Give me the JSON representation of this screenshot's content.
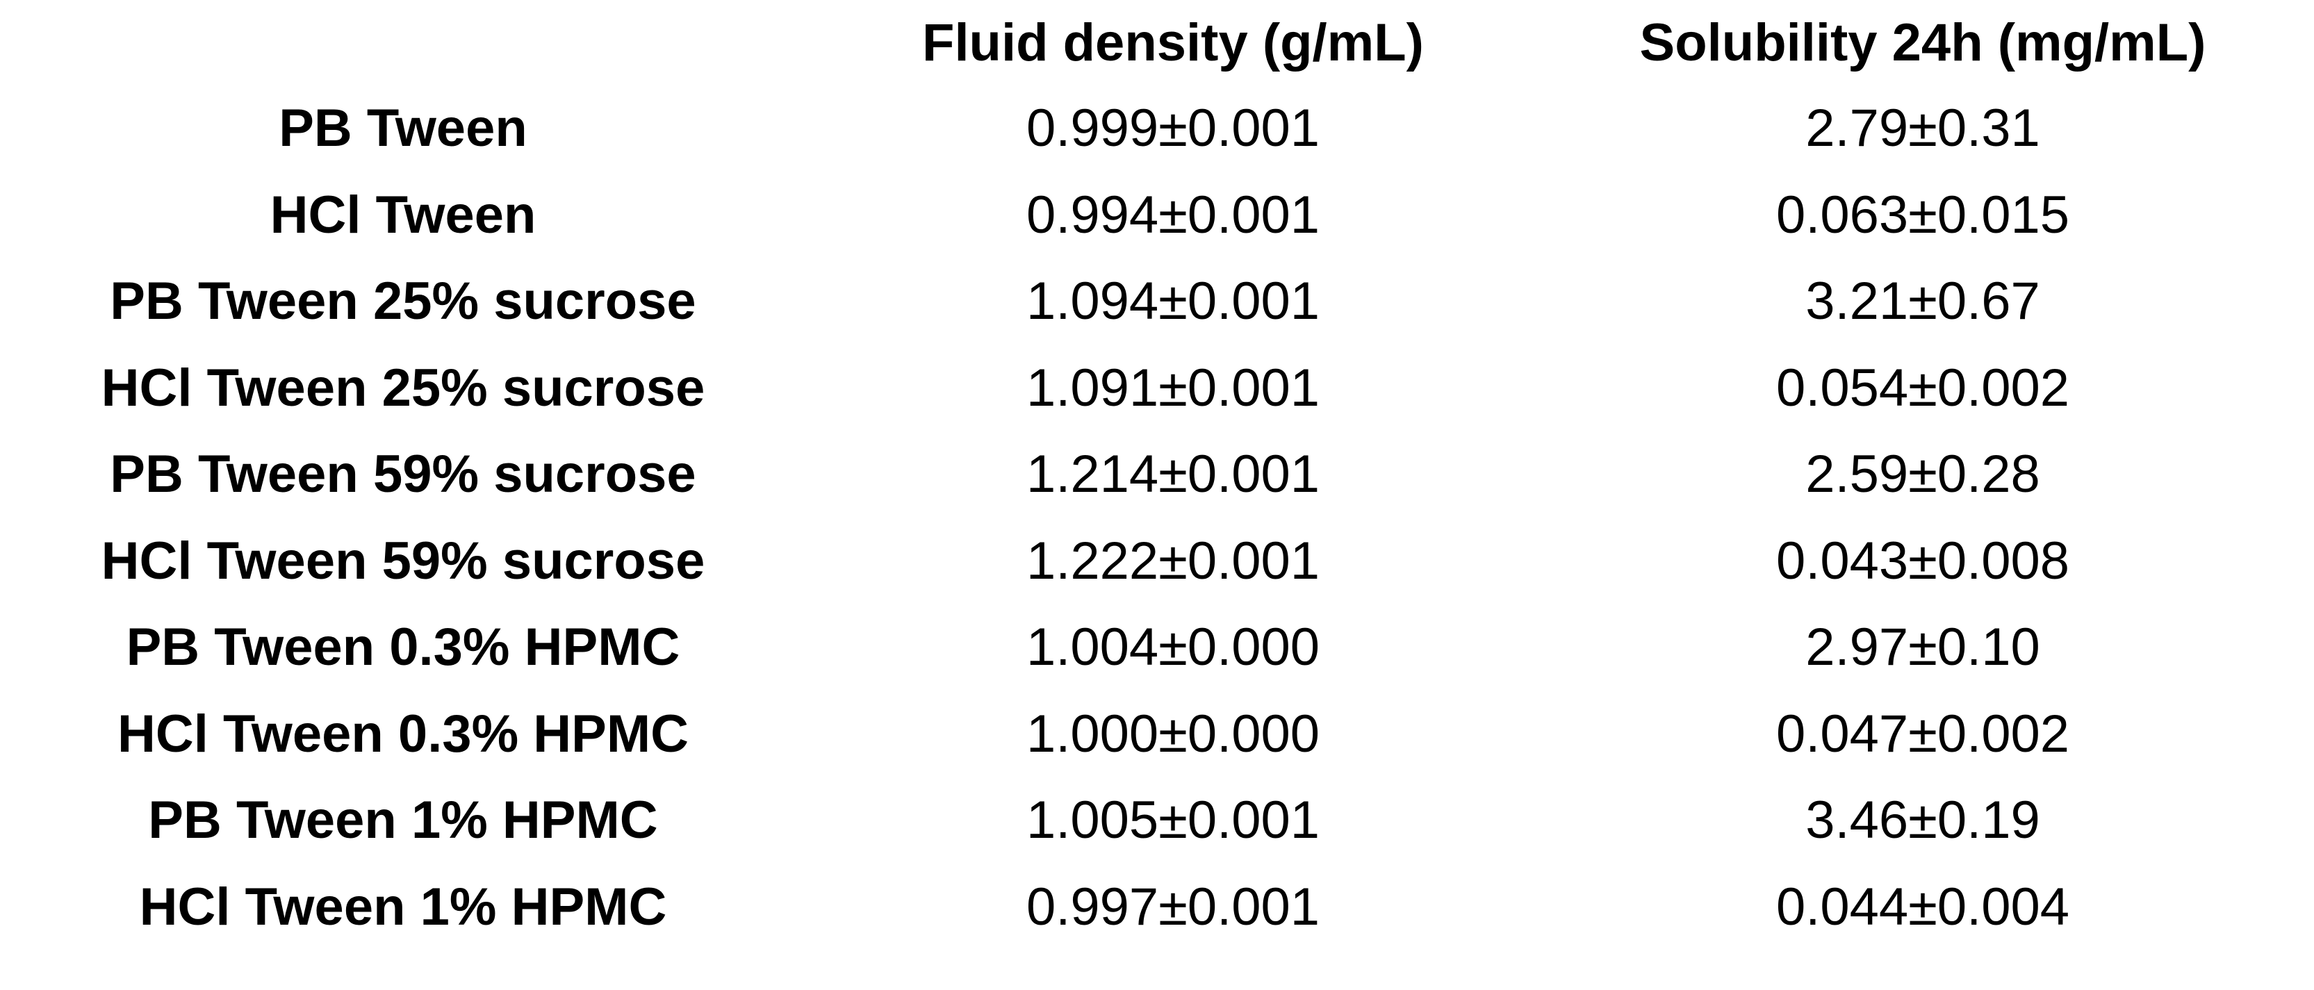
{
  "table": {
    "columns": [
      "Fluid density (g/mL)",
      "Solubility 24h (mg/mL)"
    ],
    "rows": [
      [
        "PB Tween",
        "0.999±0.001",
        "2.79±0.31"
      ],
      [
        "HCl Tween",
        "0.994±0.001",
        "0.063±0.015"
      ],
      [
        "PB Tween 25% sucrose",
        "1.094±0.001",
        "3.21±0.67"
      ],
      [
        "HCl Tween 25% sucrose",
        "1.091±0.001",
        "0.054±0.002"
      ],
      [
        "PB Tween 59% sucrose",
        "1.214±0.001",
        "2.59±0.28"
      ],
      [
        "HCl Tween 59% sucrose",
        "1.222±0.001",
        "0.043±0.008"
      ],
      [
        "PB Tween 0.3% HPMC",
        "1.004±0.000",
        "2.97±0.10"
      ],
      [
        "HCl Tween 0.3% HPMC",
        "1.000±0.000",
        "0.047±0.002"
      ],
      [
        "PB Tween 1% HPMC",
        "1.005±0.001",
        "3.46±0.19"
      ],
      [
        "HCl Tween 1% HPMC",
        "0.997±0.001",
        "0.044±0.004"
      ]
    ]
  }
}
